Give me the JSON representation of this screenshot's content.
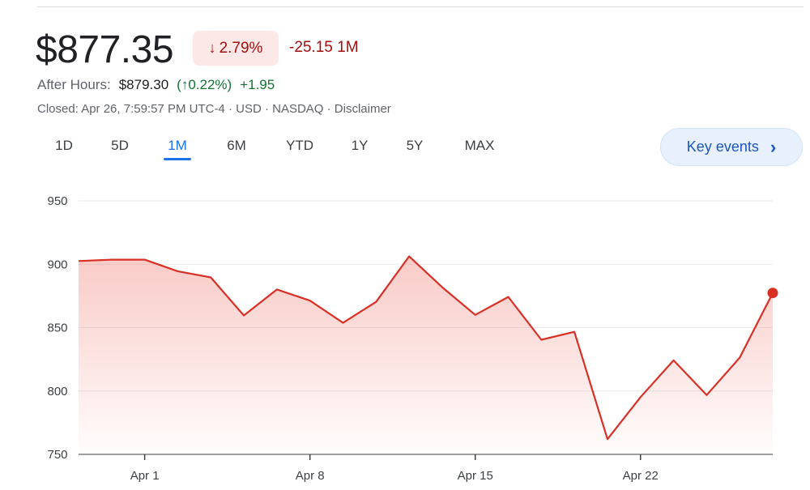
{
  "quote": {
    "price": "$877.35",
    "change_pct": "2.79%",
    "change_direction": "down",
    "change_abs": "-25.15",
    "change_period": "1M",
    "after_hours_label": "After Hours:",
    "after_hours_price": "$879.30",
    "after_hours_pct": "0.22%",
    "after_hours_direction": "up",
    "after_hours_abs": "+1.95",
    "meta": "Closed: Apr 26, 7:59:57 PM UTC-4 · USD · NASDAQ · Disclaimer"
  },
  "tabs": [
    {
      "label": "1D",
      "active": false
    },
    {
      "label": "5D",
      "active": false
    },
    {
      "label": "1M",
      "active": true
    },
    {
      "label": "6M",
      "active": false
    },
    {
      "label": "YTD",
      "active": false
    },
    {
      "label": "1Y",
      "active": false
    },
    {
      "label": "5Y",
      "active": false
    },
    {
      "label": "MAX",
      "active": false
    }
  ],
  "key_events": {
    "label": "Key events",
    "icon": "chevron-right-icon"
  },
  "colors": {
    "line": "#d93025",
    "fill": "#f28b82",
    "down": "#a50e0e",
    "up": "#137333",
    "accent": "#1a73e8"
  },
  "chart_data": {
    "type": "area",
    "x": [
      "Mar 28",
      "Mar 29",
      "Apr 1",
      "Apr 2",
      "Apr 3",
      "Apr 4",
      "Apr 5",
      "Apr 8",
      "Apr 9",
      "Apr 10",
      "Apr 11",
      "Apr 12",
      "Apr 15",
      "Apr 16",
      "Apr 17",
      "Apr 18",
      "Apr 19",
      "Apr 22",
      "Apr 23",
      "Apr 24",
      "Apr 25",
      "Apr 26"
    ],
    "values": [
      902.5,
      903.6,
      903.6,
      894.5,
      889.6,
      859.6,
      880.1,
      871.3,
      853.8,
      870.3,
      906.2,
      881.9,
      860.0,
      874.2,
      840.4,
      846.7,
      762.0,
      795.2,
      824.2,
      796.8,
      826.3,
      877.35
    ],
    "x_ticks": [
      "Apr 1",
      "Apr 8",
      "Apr 15",
      "Apr 22"
    ],
    "y_ticks": [
      950,
      900,
      850,
      800,
      750
    ],
    "ylim": [
      750,
      950
    ],
    "grid": true,
    "last_point_marker": true
  }
}
